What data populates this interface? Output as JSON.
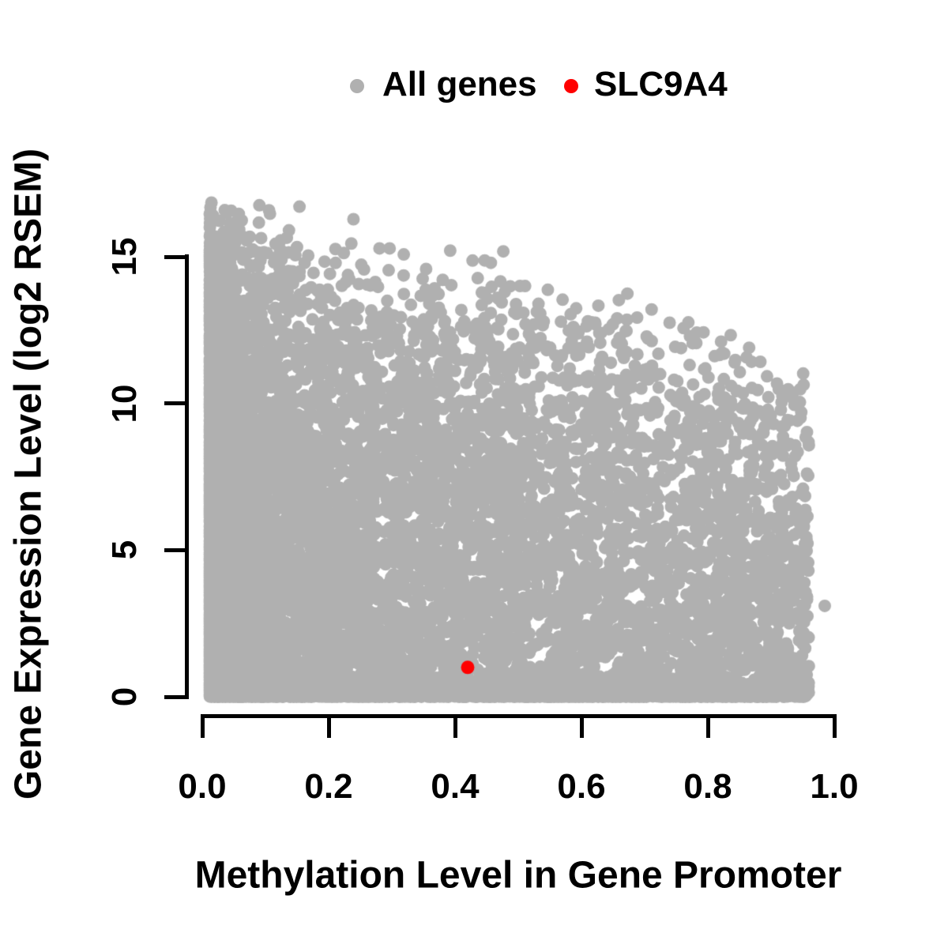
{
  "figure": {
    "background": "#ffffff",
    "text_color": "#000000",
    "axis_color": "#000000"
  },
  "legend": {
    "position": "top-center",
    "items": [
      {
        "label": "All genes",
        "color": "#b0b0b0"
      },
      {
        "label": "SLC9A4",
        "color": "#ff0000"
      }
    ]
  },
  "chart_data": {
    "type": "scatter",
    "title": "",
    "xlabel": "Methylation Level in Gene Promoter",
    "ylabel": "Gene Expression Level (log2 RSEM)",
    "xlim": [
      0,
      1
    ],
    "ylim": [
      0,
      17.3
    ],
    "grid": false,
    "xtick_values": [
      0.0,
      0.2,
      0.4,
      0.6,
      0.8,
      1.0
    ],
    "xtick_labels": [
      "0.0",
      "0.2",
      "0.4",
      "0.6",
      "0.8",
      "1.0"
    ],
    "ytick_values": [
      0,
      5,
      10,
      15
    ],
    "ytick_labels": [
      "0",
      "5",
      "10",
      "15"
    ],
    "series": [
      {
        "name": "All genes",
        "color": "#b0b0b0",
        "marker": "filled-circle",
        "point_radius_px": 8,
        "cloud": {
          "description": "dense cloud of ~12000 genes; expression upper bound decreases with promoter methylation; solid mass near y=0 across full methylation range",
          "seed": 1337,
          "n": 12000,
          "x_min": 0.012,
          "x_max": 0.96,
          "bottom_strip_prob": 0.26,
          "bottom_strip_ymax": 0.45,
          "cap_intercept": 16.8,
          "cap_slope": -5.2,
          "cap_noise_sd": 0.7,
          "y_shape_exp": 0.62,
          "y_max": 16.9
        },
        "isolated_outlier_point": {
          "x": 0.985,
          "y": 3.1
        }
      },
      {
        "name": "SLC9A4",
        "color": "#ff0000",
        "marker": "filled-circle",
        "point_radius_px": 8.5,
        "points": [
          {
            "x": 0.42,
            "y": 1.0
          }
        ]
      }
    ],
    "legend_entries": [
      "All genes",
      "SLC9A4"
    ]
  }
}
